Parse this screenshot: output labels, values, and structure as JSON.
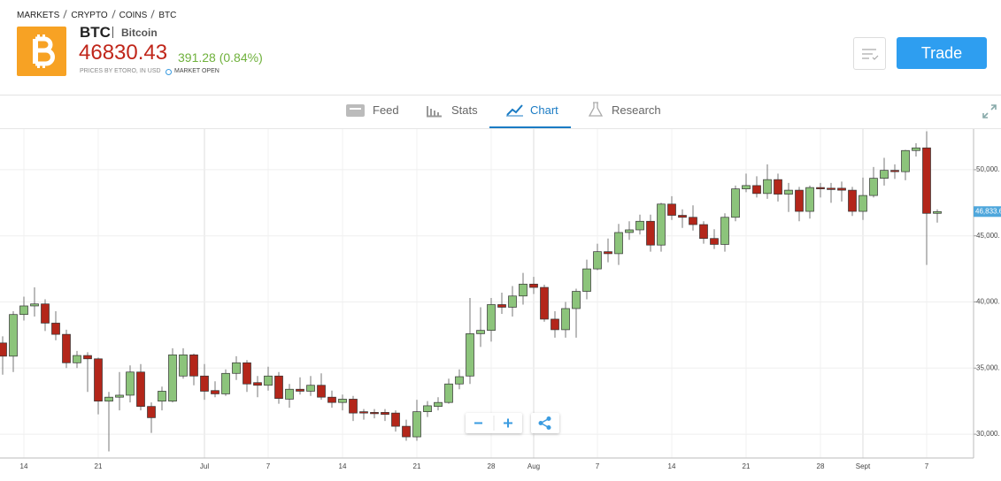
{
  "header": {
    "breadcrumb": [
      "MARKETS",
      "CRYPTO",
      "COINS",
      "BTC"
    ],
    "symbol": "BTC",
    "name": "Bitcoin",
    "price": "46830.43",
    "change": "391.28 (0.84%)",
    "source": "PRICES BY ETORO, IN USD",
    "status": "MARKET OPEN",
    "button": "Trade"
  },
  "tabs": [
    "Feed",
    "Stats",
    "Chart",
    "Research"
  ],
  "chart_data": {
    "type": "candlestick",
    "categories": [
      null,
      null,
      "14",
      null,
      null,
      null,
      null,
      null,
      null,
      "21",
      null,
      null,
      null,
      null,
      null,
      null,
      null,
      null,
      null,
      "Jul",
      null,
      null,
      null,
      null,
      null,
      "7",
      null,
      null,
      null,
      null,
      null,
      null,
      "14",
      null,
      null,
      null,
      null,
      null,
      null,
      "21",
      null,
      null,
      null,
      null,
      null,
      null,
      "28",
      null,
      null,
      null,
      "Aug",
      null,
      null,
      null,
      null,
      null,
      "7",
      null,
      null,
      null,
      null,
      null,
      null,
      "14",
      null,
      null,
      null,
      null,
      null,
      null,
      "21",
      null,
      null,
      null,
      null,
      null,
      null,
      "28",
      null,
      null,
      null,
      "Sept",
      null,
      null,
      null,
      null,
      null,
      "7",
      null
    ],
    "open": [
      36900,
      35900,
      39050,
      39700,
      39850,
      38400,
      37550,
      35400,
      35950,
      35700,
      32500,
      32800,
      32950,
      34700,
      32100,
      32500,
      32500,
      34400,
      36000,
      34400,
      33300,
      33050,
      34600,
      35400,
      33900,
      33700,
      34400,
      32650,
      33400,
      33250,
      33700,
      32800,
      32400,
      32650,
      31700,
      31650,
      31650,
      31600,
      30600,
      29800,
      31700,
      32100,
      32400,
      33800,
      34400,
      37600,
      37850,
      39800,
      39600,
      40450,
      41350,
      41100,
      38700,
      37900,
      39500,
      40800,
      42500,
      43800,
      43650,
      45250,
      45450,
      46100,
      44300,
      47400,
      46550,
      46400,
      45850,
      44800,
      44350,
      46400,
      48550,
      48800,
      48200,
      49250,
      48150,
      48450,
      46850,
      48650,
      48600,
      48600,
      48450,
      46850,
      48050,
      49350,
      49950,
      49850,
      51450,
      51650,
      46700
    ],
    "high": [
      37400,
      39300,
      40400,
      41100,
      40200,
      39300,
      37900,
      36300,
      36200,
      35800,
      33200,
      34700,
      35200,
      35300,
      32400,
      33600,
      36500,
      36500,
      36100,
      35300,
      34000,
      34900,
      35900,
      35600,
      34400,
      35100,
      34700,
      33800,
      34300,
      34400,
      34600,
      33300,
      33000,
      32900,
      31900,
      31900,
      31900,
      31800,
      31100,
      32600,
      32500,
      32800,
      34200,
      34900,
      40300,
      39600,
      40300,
      40700,
      41200,
      42200,
      41900,
      41300,
      39300,
      40000,
      41000,
      43200,
      44400,
      44800,
      45900,
      46100,
      46600,
      46600,
      47500,
      48000,
      47000,
      47300,
      46100,
      45500,
      46700,
      48800,
      49700,
      49500,
      50400,
      49700,
      49000,
      48700,
      48800,
      49000,
      49000,
      49100,
      48700,
      49400,
      50200,
      50900,
      50400,
      51500,
      52000,
      52900,
      47000
    ],
    "low": [
      34500,
      34700,
      38600,
      38900,
      37800,
      37100,
      35000,
      35000,
      33200,
      31500,
      28700,
      31800,
      32400,
      31800,
      30100,
      31800,
      32400,
      34200,
      33700,
      32600,
      32800,
      32900,
      34100,
      33200,
      32800,
      33300,
      32300,
      32000,
      33000,
      32900,
      32600,
      32000,
      31800,
      31000,
      31100,
      31200,
      31000,
      30200,
      29500,
      29500,
      31300,
      31800,
      32300,
      33400,
      33800,
      36600,
      37000,
      39100,
      38900,
      39800,
      40600,
      38500,
      37300,
      37300,
      37300,
      40200,
      42400,
      43000,
      42800,
      44700,
      45100,
      43800,
      43800,
      46200,
      45600,
      45400,
      44400,
      44000,
      43800,
      46100,
      48300,
      47900,
      47800,
      47600,
      46800,
      46100,
      46300,
      47900,
      47500,
      47600,
      46500,
      46200,
      47900,
      48800,
      49300,
      49200,
      51000,
      42800,
      46000
    ],
    "close": [
      35900,
      39050,
      39700,
      39850,
      38400,
      37550,
      35400,
      35950,
      35700,
      32500,
      32800,
      32950,
      34700,
      32100,
      31250,
      33250,
      36000,
      36000,
      34400,
      33250,
      33050,
      34600,
      35400,
      33800,
      33700,
      34400,
      32700,
      33400,
      33250,
      33700,
      32800,
      32400,
      32650,
      31600,
      31600,
      31550,
      31500,
      30600,
      29800,
      31700,
      32150,
      32400,
      33800,
      34350,
      37600,
      37850,
      39800,
      39600,
      40450,
      41350,
      41100,
      38700,
      37900,
      39500,
      40800,
      42500,
      43800,
      43650,
      45250,
      45450,
      46100,
      44300,
      47400,
      46550,
      46400,
      45850,
      44800,
      44350,
      46400,
      48550,
      48800,
      48200,
      49250,
      48150,
      48450,
      46850,
      48650,
      48550,
      48500,
      48450,
      46850,
      48050,
      49350,
      49950,
      49850,
      51450,
      51650,
      46700,
      46830
    ],
    "up_color": "#8cc47b",
    "down_color": "#b3261a",
    "ylim": [
      28200,
      53070
    ],
    "yticks": [
      {
        "value": 30000,
        "label": "30,000."
      },
      {
        "value": 35000,
        "label": "35,000."
      },
      {
        "value": 40000,
        "label": "40,000."
      },
      {
        "value": 45000,
        "label": "45,000."
      },
      {
        "value": 50000,
        "label": "50,000."
      }
    ],
    "last_price": {
      "value": 46833.6,
      "label": "46,833.6"
    },
    "grid": true
  }
}
